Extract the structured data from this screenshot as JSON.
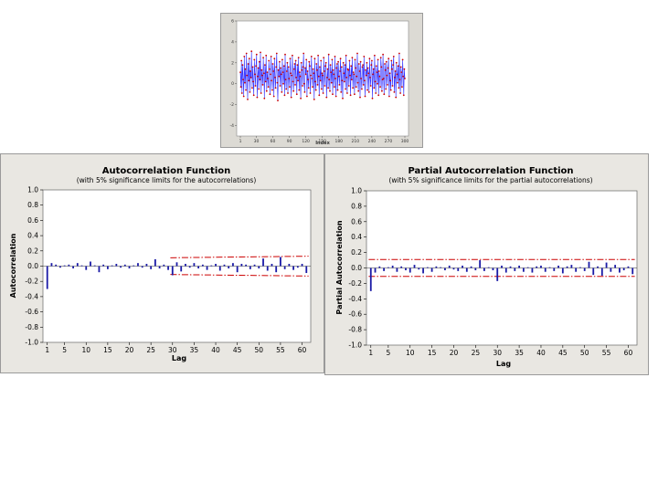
{
  "chart_data": [
    {
      "type": "line",
      "xlabel": "Index",
      "ylabel": "",
      "xticks": [
        1,
        30,
        60,
        90,
        120,
        150,
        180,
        210,
        240,
        270,
        300
      ],
      "yticks": [
        -4,
        -2,
        0,
        2,
        4,
        6
      ],
      "xlim": [
        1,
        300
      ],
      "ylim": [
        -5,
        6
      ],
      "series": [
        {
          "color": "#3333ff",
          "marker_color": "#cc0000",
          "values": [
            1.1,
            -0.3,
            2.2,
            -0.9,
            1.8,
            0.4,
            -1.2,
            2.6,
            0.1,
            1.4,
            -0.6,
            2.9,
            0.8,
            -1.5,
            1.9,
            0.3,
            2.4,
            -0.8,
            1.2,
            0.6,
            3.1,
            -0.4,
            1.6,
            0.2,
            -1.1,
            2.3,
            0.9,
            -0.2,
            1.7,
            2.8,
            -1.3,
            0.7,
            1.5,
            -0.5,
            2.1,
            0.4,
            3.0,
            -0.9,
            1.3,
            0.8,
            -0.1,
            2.5,
            1.0,
            -1.4,
            1.8,
            0.2,
            2.7,
            -0.7,
            1.1,
            0.5,
            -0.3,
            2.2,
            1.4,
            -1.0,
            0.9,
            2.6,
            0.3,
            -0.6,
            1.9,
            1.2,
            -1.2,
            2.4,
            0.6,
            -0.4,
            1.6,
            2.9,
            0.1,
            -1.6,
            1.3,
            0.7,
            2.1,
            -0.2,
            1.5,
            0.9,
            -0.8,
            2.3,
            1.1,
            0.0,
            1.7,
            -1.1,
            2.8,
            0.4,
            -0.5,
            1.2,
            2.0,
            -0.9,
            1.6,
            0.5,
            -0.3,
            2.4,
            1.0,
            -1.3,
            0.8,
            2.7,
            0.2,
            -0.7,
            1.4,
            1.9,
            -0.1,
            2.2,
            0.6,
            -1.0,
            1.8,
            0.3,
            2.5,
            -0.6,
            1.1,
            0.7,
            -1.4,
            2.0,
            1.3,
            -0.2,
            1.6,
            2.9,
            0.0,
            -0.8,
            1.5,
            0.9,
            2.3,
            -1.2,
            1.2,
            0.4,
            -0.4,
            2.1,
            1.7,
            -0.9,
            0.8,
            2.6,
            0.5,
            -0.3,
            1.4,
            1.0,
            -1.5,
            2.4,
            0.2,
            -0.6,
            1.9,
            1.3,
            -0.1,
            2.7,
            0.7,
            -1.1,
            1.6,
            0.3,
            2.2,
            -0.5,
            1.0,
            0.8,
            -0.9,
            2.5,
            1.2,
            -0.2,
            1.7,
            2.0,
            -1.3,
            0.6,
            1.4,
            -0.4,
            2.8,
            0.4,
            -0.7,
            1.8,
            1.1,
            0.1,
            2.3,
            -1.0,
            1.3,
            0.9,
            -0.3,
            2.6,
            0.5,
            -1.2,
            1.5,
            1.9,
            -0.6,
            2.1,
            0.7,
            -0.1,
            1.2,
            2.4,
            -0.8,
            1.6,
            0.3,
            -1.4,
            2.0,
            1.0,
            0.2,
            1.8,
            -0.5,
            2.7,
            0.6,
            -0.9,
            1.4,
            1.3,
            -0.2,
            2.2,
            0.8,
            -1.1,
            1.7,
            0.4,
            2.5,
            -0.4,
            1.1,
            0.9,
            -1.0,
            2.3,
            1.5,
            -0.3,
            0.7,
            2.9,
            0.1,
            -0.7,
            1.9,
            1.2,
            -1.3,
            2.1,
            0.5,
            -0.5,
            1.6,
            1.8,
            -0.1,
            2.6,
            0.3,
            -1.2,
            1.3,
            0.8,
            2.0,
            -0.6,
            1.5,
            1.0,
            -0.8,
            2.4,
            0.6,
            -0.2,
            1.8,
            2.2,
            -1.4,
            0.9,
            1.4,
            -0.4,
            2.7,
            0.2,
            -0.9,
            1.7,
            1.1,
            0.0,
            2.3,
            -1.1,
            1.2,
            0.7,
            -0.3,
            2.5,
            1.6,
            -0.7,
            0.4,
            2.8,
            0.5,
            -1.0,
            1.9,
            1.3,
            -0.5,
            2.1,
            0.8,
            -0.1,
            1.5,
            2.4,
            -1.2,
            1.0,
            0.3,
            -0.6,
            2.2,
            1.4,
            -0.2,
            1.8,
            2.6,
            -0.8,
            0.6,
            1.2,
            -1.3,
            2.0,
            0.9,
            0.1,
            1.7,
            -0.4,
            2.9,
            0.4,
            -0.9,
            1.6,
            1.1,
            -0.3,
            2.3,
            0.7,
            -1.1,
            1.4,
            0.5
          ]
        }
      ]
    },
    {
      "type": "bar",
      "title": "Autocorrelation Function",
      "subtitle": "(with 5% significance limits for the autocorrelations)",
      "xlabel": "Lag",
      "ylabel": "Autocorrelation",
      "xticks": [
        1,
        5,
        10,
        15,
        20,
        25,
        30,
        35,
        40,
        45,
        50,
        55,
        60
      ],
      "yticks": [
        "1.0",
        "0.8",
        "0.6",
        "0.4",
        "0.2",
        "0.0",
        "-0.2",
        "-0.4",
        "-0.6",
        "-0.8",
        "-1.0"
      ],
      "ylim": [
        -1,
        1
      ],
      "xlim": [
        0,
        62
      ],
      "bar_color": "#1a1aa6",
      "limit_color": "#cc0000",
      "lags": [
        1,
        2,
        3,
        4,
        5,
        6,
        7,
        8,
        9,
        10,
        11,
        12,
        13,
        14,
        15,
        16,
        17,
        18,
        19,
        20,
        21,
        22,
        23,
        24,
        25,
        26,
        27,
        28,
        29,
        30,
        31,
        32,
        33,
        34,
        35,
        36,
        37,
        38,
        39,
        40,
        41,
        42,
        43,
        44,
        45,
        46,
        47,
        48,
        49,
        50,
        51,
        52,
        53,
        54,
        55,
        56,
        57,
        58,
        59,
        60,
        61
      ],
      "values": [
        -0.3,
        0.04,
        0.02,
        -0.02,
        0.01,
        0.02,
        -0.03,
        0.04,
        0.01,
        -0.05,
        0.06,
        0.01,
        -0.08,
        0.02,
        -0.04,
        0.01,
        0.03,
        -0.02,
        0.02,
        -0.03,
        0.01,
        0.04,
        -0.02,
        0.03,
        -0.04,
        0.09,
        -0.03,
        0.02,
        -0.05,
        -0.12,
        0.05,
        -0.07,
        0.03,
        -0.02,
        0.04,
        -0.03,
        0.02,
        -0.05,
        0.01,
        0.03,
        -0.06,
        0.02,
        -0.03,
        0.04,
        -0.08,
        0.03,
        0.02,
        -0.04,
        0.02,
        -0.03,
        0.1,
        -0.06,
        0.03,
        -0.08,
        0.12,
        -0.04,
        0.03,
        -0.05,
        -0.02,
        0.03,
        -0.09
      ],
      "upper_limit": [
        0.11,
        0.13
      ],
      "lower_limit": [
        -0.11,
        -0.13
      ],
      "limit_start_lag": 30
    },
    {
      "type": "bar",
      "title": "Partial Autocorrelation Function",
      "subtitle": "(with 5% significance limits for the partial autocorrelations)",
      "xlabel": "Lag",
      "ylabel": "Partial Autocorrelation",
      "xticks": [
        1,
        5,
        10,
        15,
        20,
        25,
        30,
        35,
        40,
        45,
        50,
        55,
        60
      ],
      "yticks": [
        "1.0",
        "0.8",
        "0.6",
        "0.4",
        "0.2",
        "0.0",
        "-0.2",
        "-0.4",
        "-0.6",
        "-0.8",
        "-1.0"
      ],
      "ylim": [
        -1,
        1
      ],
      "xlim": [
        0,
        62
      ],
      "bar_color": "#1a1aa6",
      "limit_color": "#cc0000",
      "lags": [
        1,
        2,
        3,
        4,
        5,
        6,
        7,
        8,
        9,
        10,
        11,
        12,
        13,
        14,
        15,
        16,
        17,
        18,
        19,
        20,
        21,
        22,
        23,
        24,
        25,
        26,
        27,
        28,
        29,
        30,
        31,
        32,
        33,
        34,
        35,
        36,
        37,
        38,
        39,
        40,
        41,
        42,
        43,
        44,
        45,
        46,
        47,
        48,
        49,
        50,
        51,
        52,
        53,
        54,
        55,
        56,
        57,
        58,
        59,
        60,
        61
      ],
      "values": [
        -0.3,
        -0.06,
        0.02,
        -0.04,
        0.01,
        0.03,
        -0.05,
        0.02,
        -0.03,
        -0.06,
        0.04,
        -0.02,
        -0.07,
        0.01,
        -0.05,
        0.02,
        0.01,
        -0.03,
        0.03,
        -0.02,
        -0.04,
        0.03,
        -0.05,
        0.02,
        -0.03,
        0.1,
        -0.04,
        0.01,
        -0.03,
        -0.17,
        0.03,
        -0.06,
        0.02,
        -0.04,
        0.03,
        -0.05,
        0.01,
        -0.06,
        0.02,
        0.03,
        -0.05,
        0.01,
        -0.04,
        0.03,
        -0.07,
        0.02,
        0.04,
        -0.05,
        0.01,
        -0.04,
        0.08,
        -0.09,
        0.02,
        -0.1,
        0.07,
        -0.05,
        0.04,
        -0.06,
        -0.03,
        0.02,
        -0.08
      ],
      "upper_limit": [
        0.11,
        0.11
      ],
      "lower_limit": [
        -0.11,
        -0.11
      ],
      "limit_start_lag": 1
    }
  ]
}
